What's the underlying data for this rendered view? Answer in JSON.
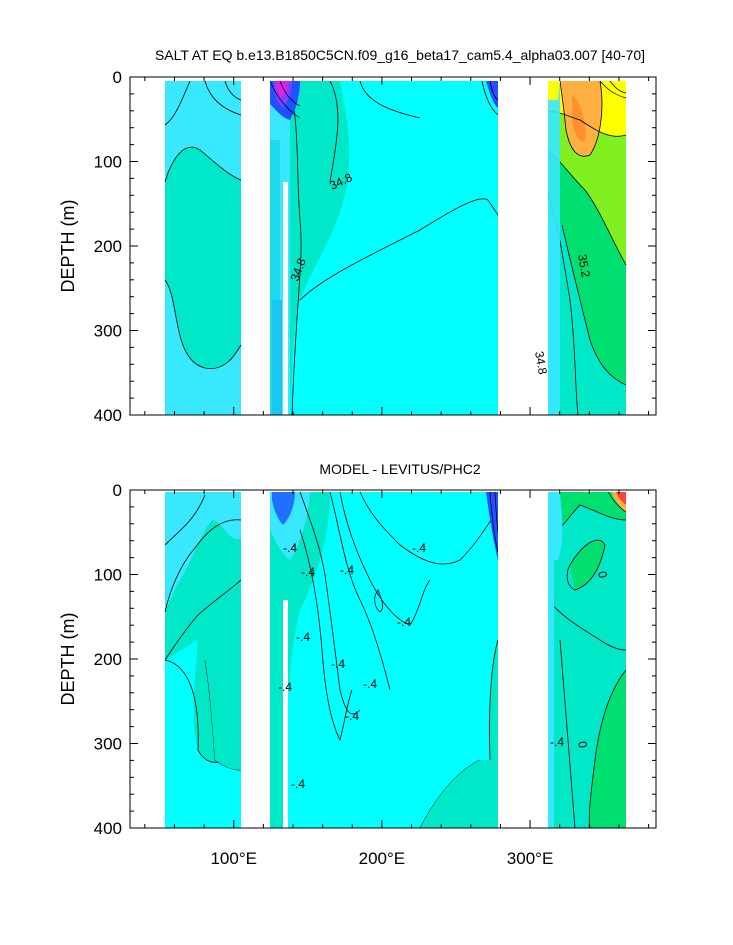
{
  "chart_data": [
    {
      "type": "contour",
      "title": "SALT AT EQ b.e13.B1850C5CN.f09_g16_beta17_cam5.4_alpha03.007 [40-70]",
      "ylabel": "DEPTH (m)",
      "xlabel": "",
      "xlim": [
        30,
        385
      ],
      "ylim": [
        400,
        0
      ],
      "y_ticks": [
        "0",
        "100",
        "200",
        "300",
        "400"
      ],
      "x_ticks": [],
      "contour_labels": [
        "34.8",
        "34.8",
        "35.2",
        "34.8"
      ]
    },
    {
      "type": "contour",
      "title": "MODEL - LEVITUS/PHC2",
      "ylabel": "DEPTH (m)",
      "xlabel": "",
      "xlim": [
        30,
        385
      ],
      "ylim": [
        400,
        0
      ],
      "y_ticks": [
        "0",
        "100",
        "200",
        "300",
        "400"
      ],
      "x_ticks": [
        "100°E",
        "200°E",
        "300°E"
      ],
      "contour_labels": [
        "-.4",
        "-.4",
        "-.4",
        "-.4",
        "-.4",
        "-.4",
        "-.4",
        "-.4",
        "-.4",
        "-.4",
        "-.4",
        "0",
        "0",
        "-.4"
      ]
    }
  ],
  "colors": {
    "base_cyan": "#00FFFF",
    "teal": "#00E8C8",
    "light_blue": "#38E8FF",
    "green": "#00E070",
    "lime": "#80F020",
    "yellow": "#FFFF00",
    "orange": "#FFB040",
    "blue": "#2050FF",
    "magenta": "#E020E0"
  }
}
